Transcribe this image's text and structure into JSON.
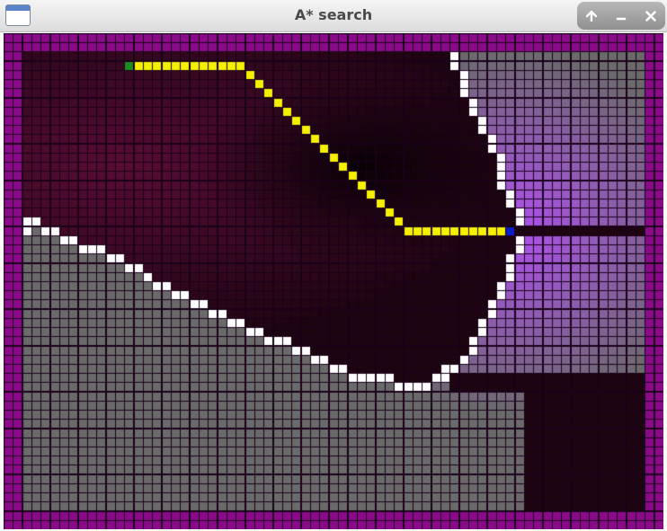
{
  "window": {
    "title": "A* search",
    "controls": [
      "maximize-icon",
      "minimize-icon",
      "close-icon"
    ]
  },
  "grid": {
    "cols": 71,
    "rows": 54,
    "start": {
      "col": 13,
      "row": 3
    },
    "goal": {
      "col": 54,
      "row": 21
    },
    "colors": {
      "wall": "#ffffff",
      "border": "#8a0a8a",
      "path": "#f5f000",
      "start": "#1e8c1e",
      "goal": "#0a1ec8",
      "unexplored": "#6a6a6a",
      "explored_near": "#b050f0",
      "explored_far": "#6e1040",
      "cell_outline": "#1a001a"
    },
    "path_cells": [
      [
        14,
        3
      ],
      [
        15,
        3
      ],
      [
        16,
        3
      ],
      [
        17,
        3
      ],
      [
        18,
        3
      ],
      [
        19,
        3
      ],
      [
        20,
        3
      ],
      [
        21,
        3
      ],
      [
        22,
        3
      ],
      [
        23,
        3
      ],
      [
        24,
        3
      ],
      [
        25,
        3
      ],
      [
        26,
        4
      ],
      [
        27,
        5
      ],
      [
        28,
        6
      ],
      [
        29,
        7
      ],
      [
        30,
        8
      ],
      [
        31,
        9
      ],
      [
        32,
        10
      ],
      [
        33,
        11
      ],
      [
        34,
        12
      ],
      [
        35,
        13
      ],
      [
        36,
        14
      ],
      [
        37,
        15
      ],
      [
        38,
        16
      ],
      [
        39,
        17
      ],
      [
        40,
        18
      ],
      [
        41,
        19
      ],
      [
        42,
        20
      ],
      [
        43,
        21
      ],
      [
        44,
        21
      ],
      [
        45,
        21
      ],
      [
        46,
        21
      ],
      [
        47,
        21
      ],
      [
        48,
        21
      ],
      [
        49,
        21
      ],
      [
        50,
        21
      ],
      [
        51,
        21
      ],
      [
        52,
        21
      ],
      [
        53,
        21
      ]
    ],
    "wall_right": [
      [
        48,
        2
      ],
      [
        48,
        3
      ],
      [
        49,
        4
      ],
      [
        49,
        5
      ],
      [
        49,
        6
      ],
      [
        50,
        7
      ],
      [
        50,
        8
      ],
      [
        51,
        9
      ],
      [
        51,
        10
      ],
      [
        52,
        11
      ],
      [
        52,
        12
      ],
      [
        53,
        13
      ],
      [
        53,
        14
      ],
      [
        53,
        15
      ],
      [
        53,
        16
      ],
      [
        54,
        17
      ],
      [
        54,
        18
      ],
      [
        55,
        19
      ],
      [
        55,
        20
      ],
      [
        55,
        22
      ],
      [
        55,
        23
      ],
      [
        54,
        24
      ],
      [
        54,
        25
      ],
      [
        54,
        26
      ],
      [
        53,
        27
      ],
      [
        53,
        28
      ],
      [
        52,
        29
      ],
      [
        52,
        30
      ],
      [
        51,
        31
      ],
      [
        51,
        32
      ],
      [
        50,
        33
      ],
      [
        50,
        34
      ],
      [
        49,
        35
      ],
      [
        48,
        36
      ]
    ],
    "wall_bottom": [
      [
        47,
        36
      ],
      [
        47,
        37
      ],
      [
        46,
        37
      ],
      [
        45,
        38
      ],
      [
        44,
        38
      ],
      [
        43,
        38
      ],
      [
        42,
        38
      ],
      [
        41,
        37
      ],
      [
        40,
        37
      ],
      [
        39,
        37
      ],
      [
        38,
        37
      ],
      [
        37,
        37
      ],
      [
        36,
        36
      ],
      [
        35,
        36
      ],
      [
        34,
        35
      ],
      [
        33,
        35
      ],
      [
        32,
        34
      ],
      [
        31,
        34
      ],
      [
        30,
        33
      ],
      [
        29,
        33
      ],
      [
        28,
        33
      ],
      [
        27,
        32
      ],
      [
        26,
        32
      ],
      [
        25,
        31
      ],
      [
        24,
        31
      ],
      [
        23,
        30
      ],
      [
        22,
        30
      ],
      [
        21,
        29
      ],
      [
        20,
        29
      ],
      [
        19,
        28
      ],
      [
        18,
        28
      ],
      [
        17,
        27
      ],
      [
        16,
        27
      ],
      [
        15,
        26
      ],
      [
        14,
        25
      ],
      [
        13,
        25
      ],
      [
        12,
        24
      ],
      [
        11,
        24
      ],
      [
        10,
        23
      ],
      [
        9,
        23
      ],
      [
        8,
        23
      ],
      [
        7,
        22
      ],
      [
        6,
        22
      ],
      [
        5,
        21
      ],
      [
        4,
        21
      ],
      [
        3,
        20
      ],
      [
        2,
        20
      ],
      [
        1,
        20
      ],
      [
        2,
        21
      ]
    ]
  }
}
